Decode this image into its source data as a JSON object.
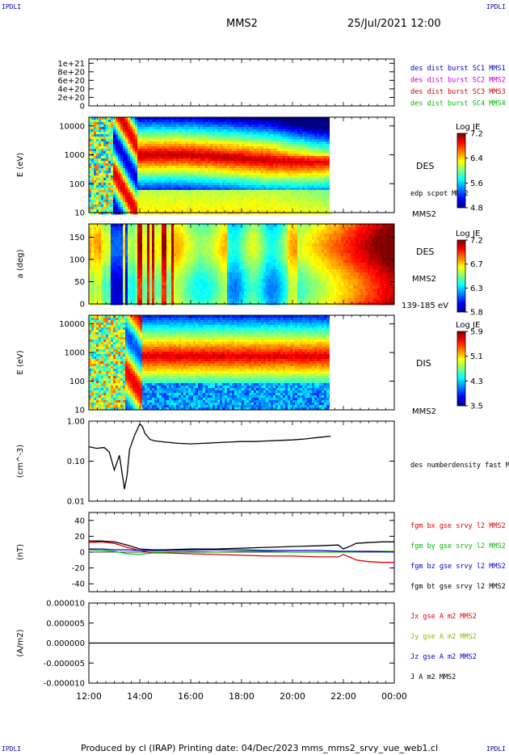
{
  "header": {
    "corner_label": "IPDLI",
    "title": "MMS2",
    "datetime": "25/Jul/2021 12:00"
  },
  "footer": {
    "text": "Produced by cl (IRAP)   Printing date: 04/Dec/2023   mms_mms2_srvy_vue_web1.cl"
  },
  "chart_data": [
    {
      "type": "line",
      "ylim": [
        0,
        1.1e+21
      ],
      "yticks": [
        "1e+21",
        "8e+20",
        "6e+20",
        "4e+20",
        "2e+20",
        "0"
      ],
      "legend": [
        {
          "text": "des dist burst SC1 MMS1",
          "color": "#0000cc"
        },
        {
          "text": "des dist burst SC2 MMS2",
          "color": "#cc00cc"
        },
        {
          "text": "des dist burst SC3 MMS3",
          "color": "#cc0000"
        },
        {
          "text": "des dist burst SC4 MMS4",
          "color": "#00bb00"
        }
      ]
    },
    {
      "type": "heatmap",
      "ylabel": "E (eV)",
      "yscale": "log",
      "ylim": [
        10,
        20000
      ],
      "yticks": [
        "10000",
        "1000",
        "100",
        "10"
      ],
      "instrument": "DES",
      "overlay_label": "edp scpot MMS2",
      "sc_label": "MMS2",
      "colorbar": {
        "title": "Log JE",
        "ticks": [
          "7.2",
          "6.4",
          "5.6",
          "4.8"
        ],
        "range": [
          4.8,
          7.2
        ]
      }
    },
    {
      "type": "heatmap",
      "ylabel": "a (deg)",
      "ylim": [
        0,
        180
      ],
      "yticks": [
        "150",
        "100",
        "50",
        "0"
      ],
      "instrument": "DES",
      "sc_label": "MMS2",
      "energy_range": "139-185 eV",
      "colorbar": {
        "title": "Log JE",
        "ticks": [
          "7.2",
          "6.7",
          "6.3",
          "5.8"
        ],
        "range": [
          5.8,
          7.2
        ]
      }
    },
    {
      "type": "heatmap",
      "ylabel": "E (eV)",
      "yscale": "log",
      "ylim": [
        10,
        20000
      ],
      "yticks": [
        "10000",
        "1000",
        "100",
        "10"
      ],
      "instrument": "DIS",
      "sc_label": "MMS2",
      "colorbar": {
        "title": "Log JE",
        "ticks": [
          "5.9",
          "5.1",
          "4.3",
          "3.5"
        ],
        "range": [
          3.5,
          5.9
        ]
      }
    },
    {
      "type": "line",
      "ylabel": "(cm^-3)",
      "yscale": "log",
      "ylim": [
        0.01,
        1.0
      ],
      "yticks": [
        "1.00",
        "0.10",
        "0.01"
      ],
      "legend": [
        {
          "text": "des numberdensity fast M",
          "color": "#000000"
        }
      ],
      "series": [
        {
          "name": "des numberdensity fast M",
          "color": "#000000",
          "x": [
            12.0,
            12.3,
            12.6,
            12.8,
            13.0,
            13.2,
            13.4,
            13.5,
            13.6,
            13.8,
            14.0,
            14.1,
            14.2,
            14.4,
            14.6,
            15.0,
            15.5,
            16.0,
            16.5,
            17.0,
            17.5,
            18.0,
            18.5,
            19.0,
            19.5,
            20.0,
            20.5,
            21.0,
            21.5
          ],
          "y": [
            0.23,
            0.21,
            0.22,
            0.17,
            0.06,
            0.14,
            0.02,
            0.045,
            0.2,
            0.45,
            0.85,
            0.75,
            0.5,
            0.35,
            0.32,
            0.3,
            0.28,
            0.27,
            0.28,
            0.29,
            0.3,
            0.31,
            0.31,
            0.32,
            0.33,
            0.34,
            0.36,
            0.39,
            0.42
          ]
        }
      ]
    },
    {
      "type": "line",
      "ylabel": "(nT)",
      "ylim": [
        -50,
        50
      ],
      "yticks": [
        "40",
        "20",
        "0",
        "-20",
        "-40"
      ],
      "legend": [
        {
          "text": "fgm bx gse srvy l2 MMS2",
          "color": "#dd0000"
        },
        {
          "text": "fgm by gse srvy l2 MMS2",
          "color": "#00bb00"
        },
        {
          "text": "fgm bz gse srvy l2 MMS2",
          "color": "#0000cc"
        },
        {
          "text": "fgm bt gse srvy l2 MMS2",
          "color": "#000000"
        }
      ],
      "series": [
        {
          "name": "fgm bx gse srvy l2 MMS2",
          "color": "#dd0000",
          "x": [
            12.0,
            12.5,
            13.0,
            13.5,
            14.0,
            14.5,
            15.0,
            16.0,
            17.0,
            18.0,
            19.0,
            20.0,
            21.0,
            21.8,
            22.0,
            22.3,
            22.5,
            23.0,
            23.5,
            24.0
          ],
          "y": [
            12,
            13,
            11,
            6,
            2,
            -1,
            -1,
            -2,
            -3,
            -4,
            -5,
            -5,
            -6,
            -6,
            -3,
            -7,
            -10,
            -12,
            -13,
            -13
          ]
        },
        {
          "name": "fgm by gse srvy l2 MMS2",
          "color": "#00bb00",
          "x": [
            12.0,
            12.5,
            13.0,
            13.5,
            14.0,
            14.5,
            15.0,
            16.0,
            17.0,
            18.0,
            19.0,
            20.0,
            21.0,
            22.0,
            23.0,
            24.0
          ],
          "y": [
            3,
            2,
            1,
            -2,
            -3,
            -1,
            0,
            1,
            0,
            1,
            1,
            0,
            0,
            0,
            1,
            1
          ]
        },
        {
          "name": "fgm bz gse srvy l2 MMS2",
          "color": "#0000cc",
          "x": [
            12.0,
            12.5,
            13.0,
            13.5,
            14.0,
            14.5,
            15.0,
            16.0,
            17.0,
            18.0,
            19.0,
            20.0,
            21.0,
            22.0,
            23.0,
            24.0
          ],
          "y": [
            4,
            4,
            3,
            3,
            2,
            2,
            2,
            3,
            3,
            3,
            2,
            2,
            2,
            1,
            1,
            0
          ]
        },
        {
          "name": "fgm bt gse srvy l2 MMS2",
          "color": "#000000",
          "x": [
            12.0,
            12.5,
            13.0,
            13.5,
            14.0,
            14.5,
            15.0,
            16.0,
            17.0,
            18.0,
            19.0,
            20.0,
            21.0,
            21.8,
            22.0,
            22.3,
            22.5,
            23.0,
            23.5,
            24.0
          ],
          "y": [
            14,
            14,
            13,
            9,
            4,
            3,
            3,
            4,
            4,
            5,
            6,
            7,
            8,
            9,
            4,
            8,
            11,
            12,
            13,
            13
          ]
        }
      ]
    },
    {
      "type": "line",
      "ylabel": "(A/m2)",
      "ylim": [
        -1e-05,
        1e-05
      ],
      "yticks": [
        "0.000010",
        "0.000005",
        "0.000000",
        "-0.000005",
        "-0.000010"
      ],
      "xticks": [
        "12:00",
        "14:00",
        "16:00",
        "18:00",
        "20:00",
        "22:00",
        "00:00"
      ],
      "xlim": [
        12,
        24
      ],
      "legend": [
        {
          "text": "Jx gse A m2 MMS2",
          "color": "#dd0000"
        },
        {
          "text": "Jy gse A m2 MMS2",
          "color": "#88bb00"
        },
        {
          "text": "Jz gse A m2 MMS2",
          "color": "#0000cc"
        },
        {
          "text": "J A m2 MMS2",
          "color": "#000000"
        }
      ],
      "series": [
        {
          "name": "J A m2 MMS2",
          "color": "#000000",
          "x": [
            12.0,
            24.0
          ],
          "y": [
            0.0,
            0.0
          ]
        }
      ]
    }
  ]
}
